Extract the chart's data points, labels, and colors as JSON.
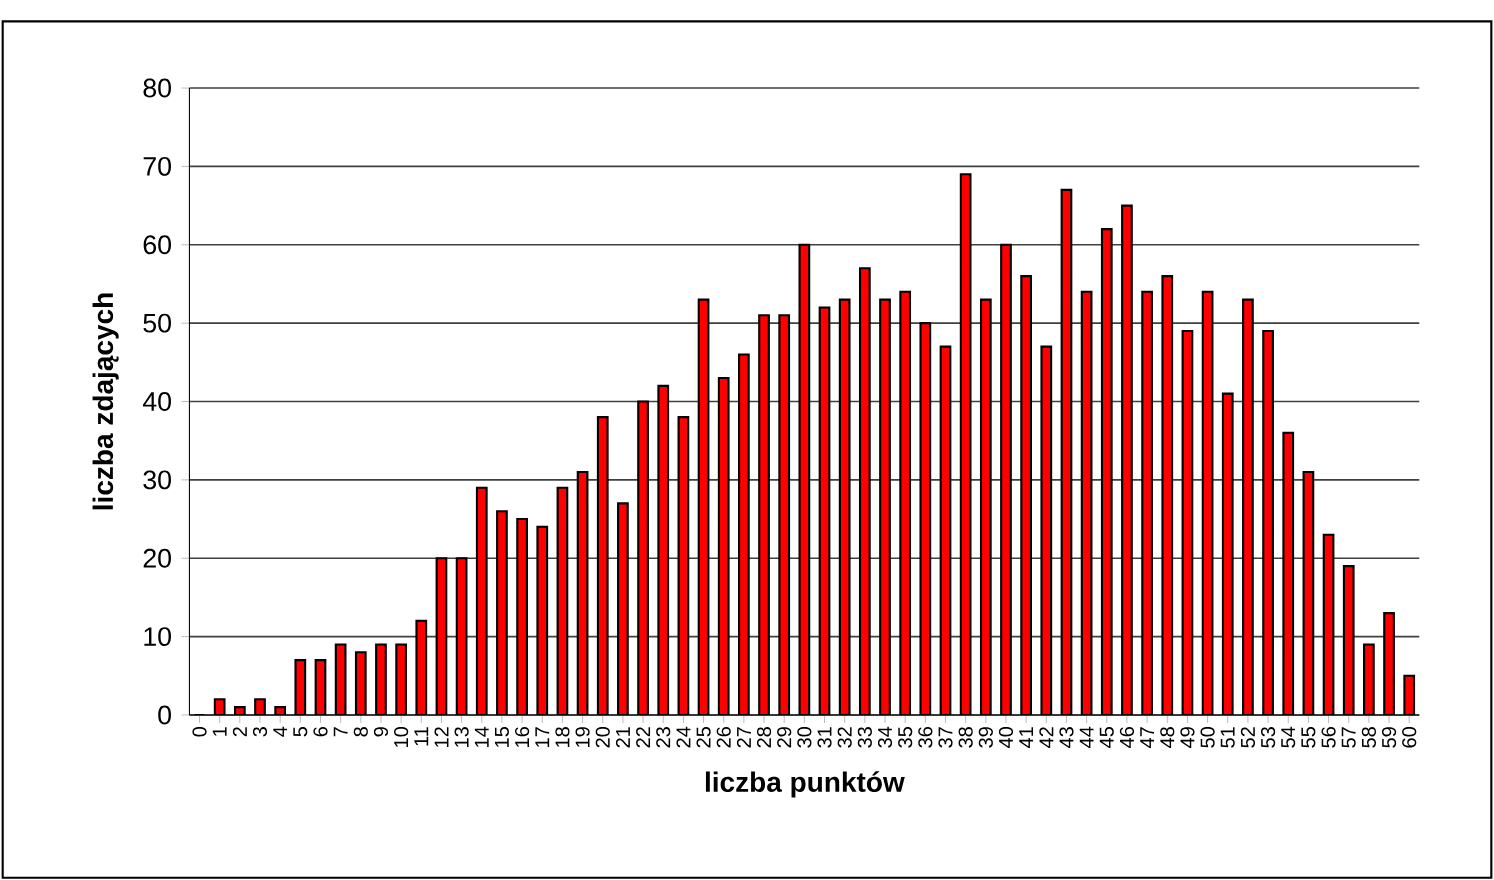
{
  "chart_data": {
    "type": "bar",
    "xlabel": "liczba punktów",
    "ylabel": "liczba zdających",
    "categories": [
      "0",
      "1",
      "2",
      "3",
      "4",
      "5",
      "6",
      "7",
      "8",
      "9",
      "10",
      "11",
      "12",
      "13",
      "14",
      "15",
      "16",
      "17",
      "18",
      "19",
      "20",
      "21",
      "22",
      "23",
      "24",
      "25",
      "26",
      "27",
      "28",
      "29",
      "30",
      "31",
      "32",
      "33",
      "34",
      "35",
      "36",
      "37",
      "38",
      "39",
      "40",
      "41",
      "42",
      "43",
      "44",
      "45",
      "46",
      "47",
      "48",
      "49",
      "50",
      "51",
      "52",
      "53",
      "54",
      "55",
      "56",
      "57",
      "58",
      "59",
      "60"
    ],
    "values": [
      0,
      2,
      1,
      2,
      1,
      7,
      7,
      9,
      8,
      9,
      9,
      12,
      20,
      20,
      29,
      26,
      25,
      24,
      29,
      31,
      38,
      27,
      40,
      42,
      38,
      53,
      43,
      46,
      51,
      51,
      60,
      52,
      53,
      57,
      53,
      54,
      50,
      47,
      69,
      53,
      60,
      56,
      47,
      67,
      54,
      62,
      65,
      54,
      56,
      49,
      54,
      41,
      53,
      49,
      36,
      31,
      23,
      19,
      9,
      13,
      5
    ],
    "color": "#ff0000",
    "ylim": [
      0,
      80
    ],
    "yticks": [
      0,
      10,
      20,
      30,
      40,
      50,
      60,
      70,
      80
    ],
    "grid": "y"
  }
}
